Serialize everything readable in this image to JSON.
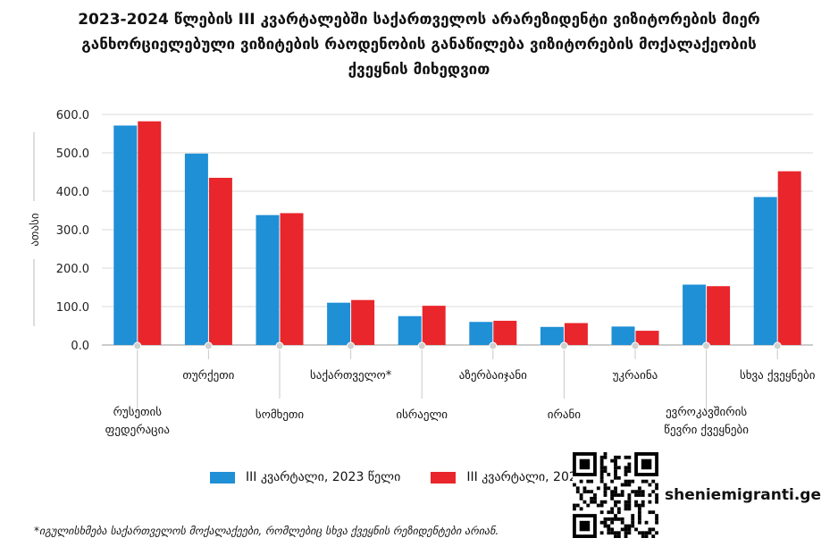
{
  "title_lines": [
    "2023-2024 წლების III კვარტალებში საქართველოს არარეზიდენტი ვიზიტორების მიერ",
    "განხორციელებული ვიზიტების რაოდენობის განაწილება ვიზიტორების მოქალაქეობის",
    "ქვეყნის მიხედვით"
  ],
  "colors": {
    "series_2023": "#1f8fd6",
    "series_2024": "#e8262b",
    "grid": "#d9d9d9",
    "axis": "#999999"
  },
  "chart_data": {
    "type": "bar",
    "title": "2023-2024 წლების III კვარტალებში საქართველოს არარეზიდენტი ვიზიტორების მიერ განხორციელებული ვიზიტების რაოდენობის განაწილება ვიზიტორების მოქალაქეობის ქვეყნის მიხედვით",
    "ylabel": "ათასი",
    "xlabel": "",
    "ylim": [
      0,
      600
    ],
    "yticks": [
      "600.0",
      "500.0",
      "400.0",
      "300.0",
      "200.0",
      "100.0",
      "0.0"
    ],
    "grid": true,
    "legend_position": "bottom",
    "categories": [
      [
        "რუსეთის",
        "ფედერაცია"
      ],
      [
        "თურქეთი"
      ],
      [
        "სომხეთი"
      ],
      [
        "საქართველო*"
      ],
      [
        "ისრაელი"
      ],
      [
        "აზერბაიჯანი"
      ],
      [
        "ირანი"
      ],
      [
        "უკრაინა"
      ],
      [
        "ევროკავშირის",
        "წევრი ქვეყნები"
      ],
      [
        "სხვა ქვეყნები"
      ]
    ],
    "series": [
      {
        "name": "III კვარტალი, 2023 წელი",
        "values": [
          571,
          498,
          338,
          110,
          75,
          60,
          47,
          48,
          157,
          385
        ]
      },
      {
        "name": "III კვარტალი, 2024 წელი",
        "values": [
          582,
          435,
          343,
          117,
          102,
          63,
          57,
          37,
          153,
          452
        ]
      }
    ]
  },
  "legend": {
    "item_2023": "III კვარტალი, 2023 წელი",
    "item_2024": "III კვარტალი, 2024 წელი"
  },
  "footnote": "*იგულისხმება საქართველოს მოქალაქეები, რომლებიც სხვა ქვეყნის რეზიდენტები არიან.",
  "watermark": {
    "site": "sheniemigranti.ge",
    "qr_icon": "qr-code-icon"
  }
}
